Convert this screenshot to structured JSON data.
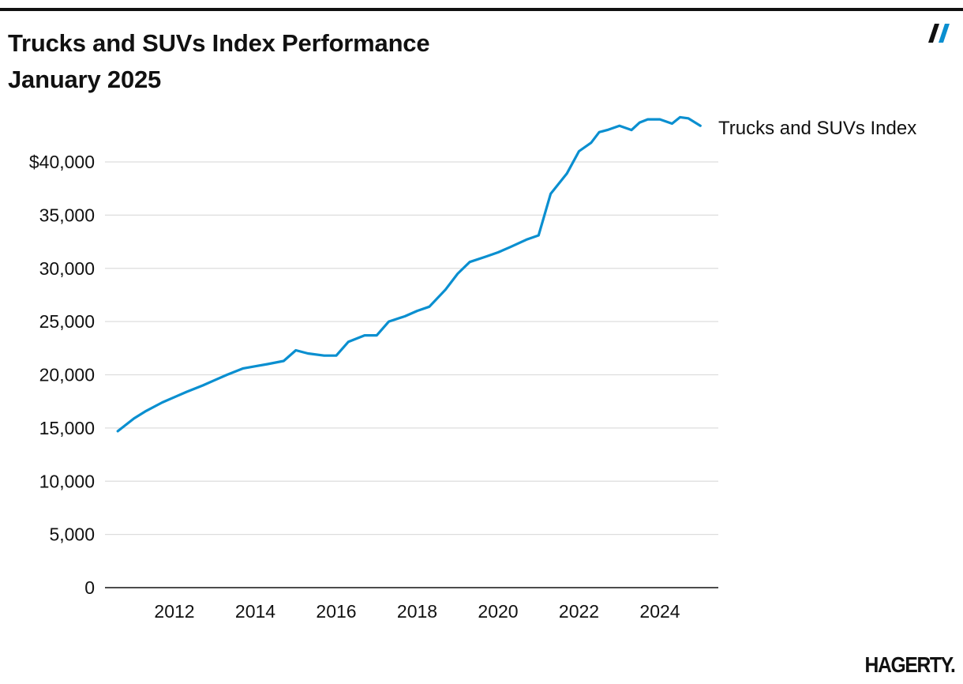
{
  "header": {
    "title_line1": "Trucks and SUVs Index Performance",
    "title_line2": "January 2025",
    "brand_mark_icon": "hagerty-slash-icon"
  },
  "footer": {
    "logo_text": "HAGERTY."
  },
  "colors": {
    "line": "#0a8fd0",
    "text": "#111111",
    "grid": "#dddddd",
    "axis": "#111111"
  },
  "chart_data": {
    "type": "line",
    "title": "Trucks and SUVs Index Performance January 2025",
    "xlabel": "",
    "ylabel": "",
    "xlim": [
      2010.25,
      2025.1
    ],
    "ylim": [
      0,
      44000
    ],
    "grid": true,
    "legend": "right-inline",
    "x_ticks": [
      2012,
      2014,
      2016,
      2018,
      2020,
      2022,
      2024
    ],
    "x_tick_labels": [
      "2012",
      "2014",
      "2016",
      "2018",
      "2020",
      "2022",
      "2024"
    ],
    "y_ticks": [
      0,
      5000,
      10000,
      15000,
      20000,
      25000,
      30000,
      35000,
      40000
    ],
    "y_tick_labels": [
      "0",
      "5,000",
      "10,000",
      "15,000",
      "20,000",
      "25,000",
      "30,000",
      "35,000",
      "$40,000"
    ],
    "series": [
      {
        "name": "Trucks and SUVs Index",
        "x": [
          2010.6,
          2011.0,
          2011.3,
          2011.7,
          2012.0,
          2012.3,
          2012.7,
          2013.0,
          2013.3,
          2013.7,
          2014.0,
          2014.3,
          2014.7,
          2015.0,
          2015.3,
          2015.7,
          2016.0,
          2016.3,
          2016.7,
          2017.0,
          2017.3,
          2017.7,
          2018.0,
          2018.3,
          2018.7,
          2019.0,
          2019.3,
          2019.7,
          2020.0,
          2020.3,
          2020.7,
          2021.0,
          2021.3,
          2021.7,
          2022.0,
          2022.3,
          2022.5,
          2022.7,
          2023.0,
          2023.3,
          2023.5,
          2023.7,
          2024.0,
          2024.3,
          2024.5,
          2024.7,
          2025.0
        ],
        "values": [
          14700,
          15900,
          16600,
          17400,
          17900,
          18400,
          19000,
          19500,
          20000,
          20600,
          20800,
          21000,
          21300,
          22300,
          22000,
          21800,
          21800,
          23100,
          23700,
          23700,
          25000,
          25500,
          26000,
          26400,
          28000,
          29500,
          30600,
          31100,
          31500,
          32000,
          32700,
          33100,
          37000,
          38900,
          41000,
          41800,
          42800,
          43000,
          43400,
          43000,
          43700,
          44000,
          44000,
          43600,
          44200,
          44100,
          43400
        ]
      }
    ]
  }
}
